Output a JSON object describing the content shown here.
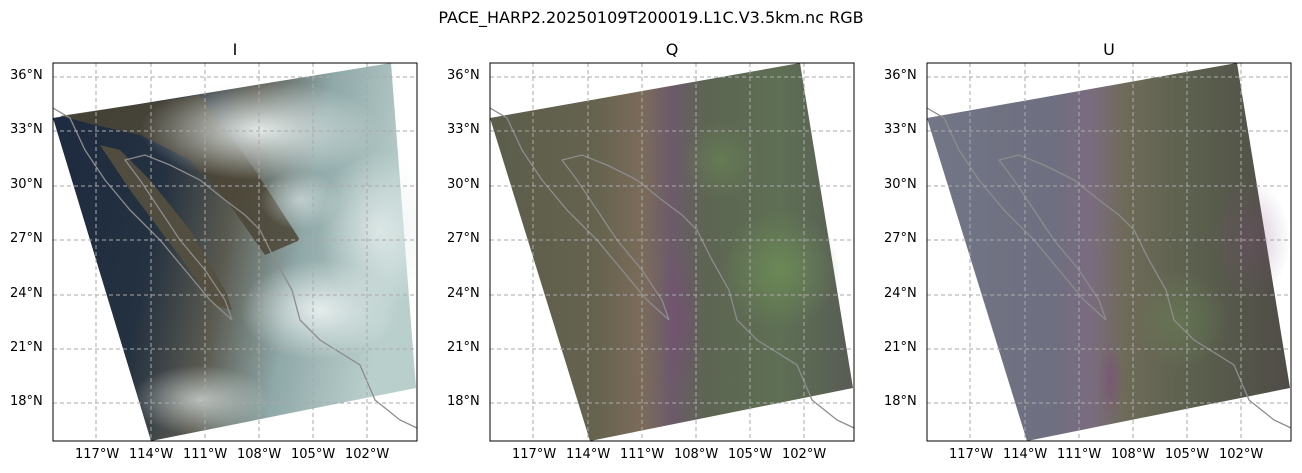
{
  "figure": {
    "suptitle": "PACE_HARP2.20250109T200019.L1C.V3.5km.nc RGB"
  },
  "panels": [
    {
      "title": "I"
    },
    {
      "title": "Q"
    },
    {
      "title": "U"
    }
  ],
  "axes": {
    "lat_labels": [
      "36°N",
      "33°N",
      "30°N",
      "27°N",
      "24°N",
      "21°N",
      "18°N"
    ],
    "lon_labels": [
      "117°W",
      "114°W",
      "111°W",
      "108°W",
      "105°W",
      "102°W"
    ],
    "gridlines": true,
    "gridline_style": "dashed",
    "gridline_color": "#aaaaaa"
  },
  "colors": {
    "coastline": "#8c8c8c",
    "i_ocean": "#142036",
    "i_cloud": "#c9d9d9",
    "q_base": "#5b5b4e",
    "u_base": "#6b6f7e"
  }
}
